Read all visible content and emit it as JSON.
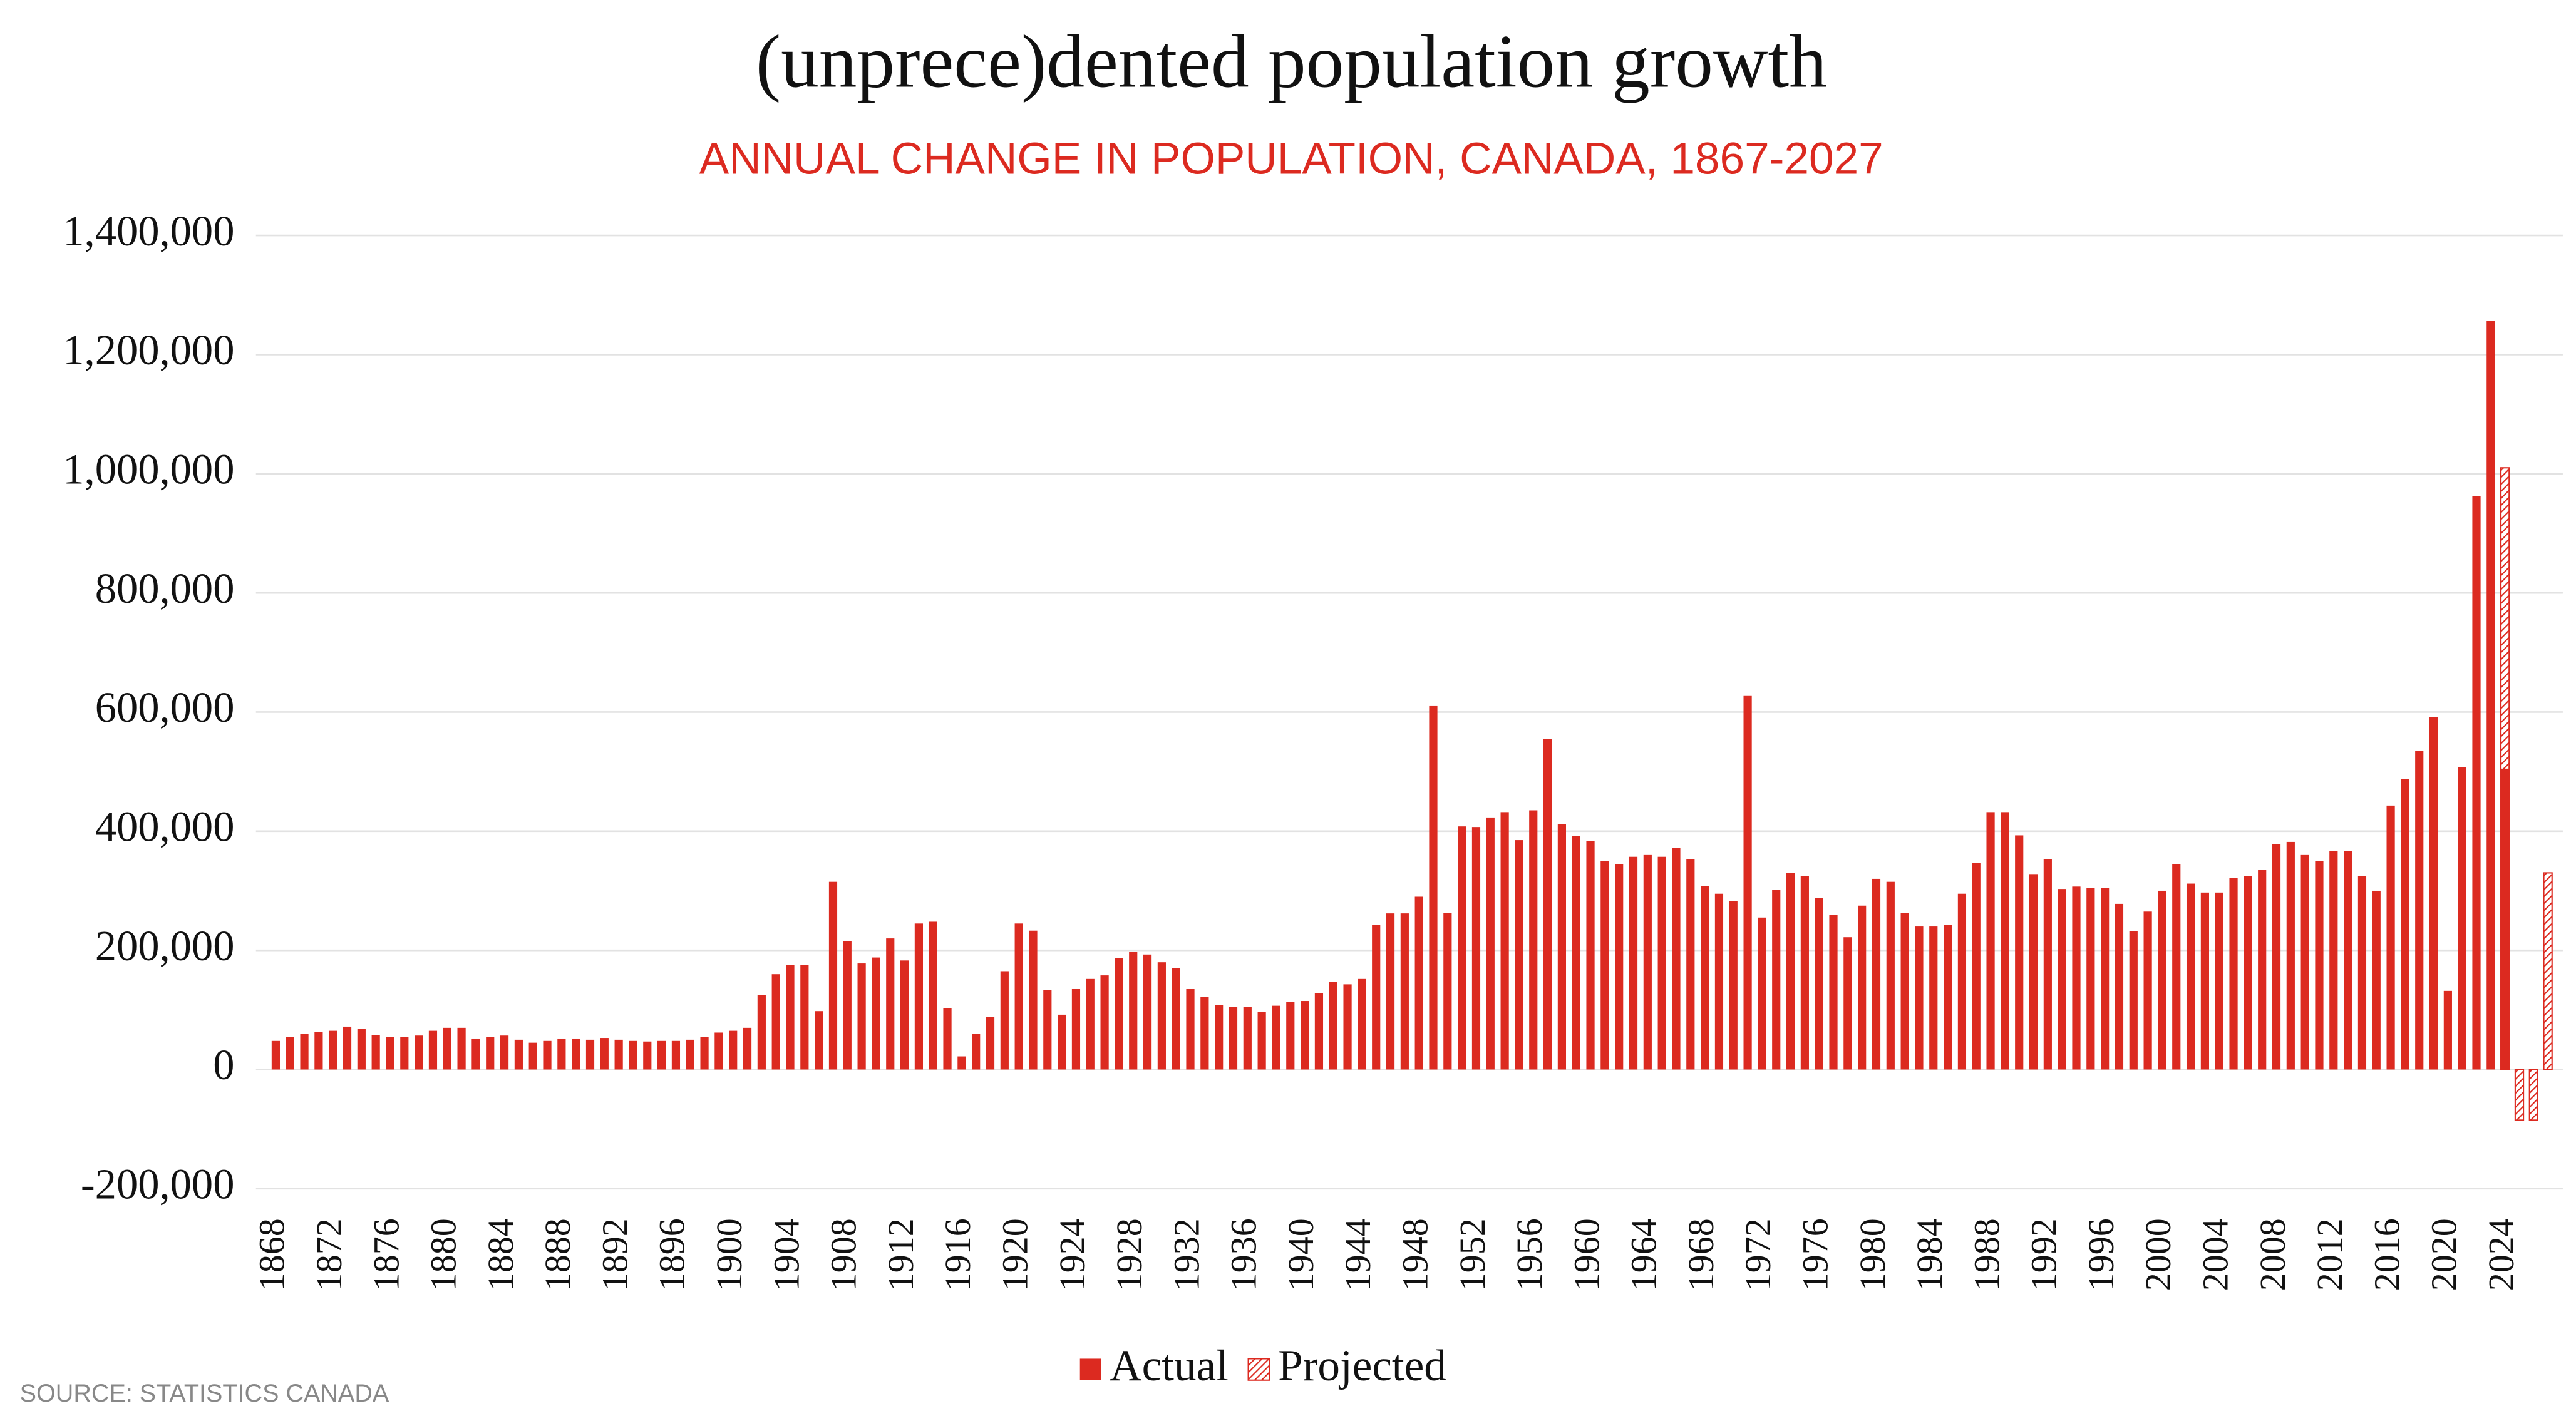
{
  "chart_data": {
    "type": "bar",
    "title": "(unprece)dented population growth",
    "subtitle": "ANNUAL CHANGE IN POPULATION, CANADA, 1867-2027",
    "source": "SOURCE: STATISTICS CANADA",
    "categories": [
      "1868",
      null,
      null,
      null,
      "1872",
      null,
      null,
      null,
      "1876",
      null,
      null,
      null,
      "1880",
      null,
      null,
      null,
      "1884",
      null,
      null,
      null,
      "1888",
      null,
      null,
      null,
      "1892",
      null,
      null,
      null,
      "1896",
      null,
      null,
      null,
      "1900",
      null,
      null,
      null,
      "1904",
      null,
      null,
      null,
      "1908",
      null,
      null,
      null,
      "1912",
      null,
      null,
      null,
      "1916",
      null,
      null,
      null,
      "1920",
      null,
      null,
      null,
      "1924",
      null,
      null,
      null,
      "1928",
      null,
      null,
      null,
      "1932",
      null,
      null,
      null,
      "1936",
      null,
      null,
      null,
      "1940",
      null,
      null,
      null,
      "1944",
      null,
      null,
      null,
      "1948",
      null,
      null,
      null,
      "1952",
      null,
      null,
      null,
      "1956",
      null,
      null,
      null,
      "1960",
      null,
      null,
      null,
      "1964",
      null,
      null,
      null,
      "1968",
      null,
      null,
      null,
      "1972",
      null,
      null,
      null,
      "1976",
      null,
      null,
      null,
      "1980",
      null,
      null,
      null,
      "1984",
      null,
      null,
      null,
      "1988",
      null,
      null,
      null,
      "1992",
      null,
      null,
      null,
      "1996",
      null,
      null,
      null,
      "2000",
      null,
      null,
      null,
      "2004",
      null,
      null,
      null,
      "2008",
      null,
      null,
      null,
      "2012",
      null,
      null,
      null,
      "2016",
      null,
      null,
      null,
      "2020",
      null,
      null,
      null,
      "2024",
      null,
      null,
      null
    ],
    "series": [
      {
        "name": "Actual",
        "color": "#dc2a20",
        "pattern": "solid",
        "values": [
          48000,
          55000,
          60000,
          63000,
          65000,
          72000,
          68000,
          58000,
          55000,
          55000,
          57000,
          65000,
          70000,
          70000,
          52000,
          55000,
          57000,
          50000,
          45000,
          48000,
          52000,
          52000,
          50000,
          53000,
          50000,
          48000,
          47000,
          48000,
          48000,
          50000,
          55000,
          62000,
          65000,
          70000,
          125000,
          160000,
          175000,
          175000,
          98000,
          315000,
          215000,
          178000,
          188000,
          220000,
          183000,
          245000,
          248000,
          103000,
          22000,
          60000,
          88000,
          165000,
          245000,
          233000,
          133000,
          92000,
          135000,
          152000,
          158000,
          187000,
          198000,
          193000,
          180000,
          170000,
          135000,
          122000,
          108000,
          105000,
          105000,
          97000,
          107000,
          113000,
          115000,
          128000,
          147000,
          143000,
          152000,
          243000,
          262000,
          262000,
          290000,
          610000,
          263000,
          408000,
          407000,
          423000,
          432000,
          385000,
          435000,
          555000,
          412000,
          392000,
          383000,
          350000,
          345000,
          357000,
          360000,
          357000,
          372000,
          353000,
          308000,
          295000,
          283000,
          627000,
          255000,
          302000,
          330000,
          325000,
          288000,
          260000,
          222000,
          275000,
          320000,
          315000,
          263000,
          240000,
          240000,
          243000,
          295000,
          347000,
          432000,
          432000,
          393000,
          328000,
          353000,
          303000,
          307000,
          305000,
          305000,
          278000,
          232000,
          265000,
          300000,
          345000,
          312000,
          297000,
          297000,
          322000,
          325000,
          335000,
          378000,
          382000,
          360000,
          350000,
          367000,
          367000,
          325000,
          300000,
          443000,
          488000,
          535000,
          592000,
          132000,
          508000,
          962000,
          1257000,
          505000,
          null,
          null,
          null
        ]
      },
      {
        "name": "Projected",
        "color": "#dc2a20",
        "pattern": "hatch",
        "values": [
          null,
          null,
          null,
          null,
          null,
          null,
          null,
          null,
          null,
          null,
          null,
          null,
          null,
          null,
          null,
          null,
          null,
          null,
          null,
          null,
          null,
          null,
          null,
          null,
          null,
          null,
          null,
          null,
          null,
          null,
          null,
          null,
          null,
          null,
          null,
          null,
          null,
          null,
          null,
          null,
          null,
          null,
          null,
          null,
          null,
          null,
          null,
          null,
          null,
          null,
          null,
          null,
          null,
          null,
          null,
          null,
          null,
          null,
          null,
          null,
          null,
          null,
          null,
          null,
          null,
          null,
          null,
          null,
          null,
          null,
          null,
          null,
          null,
          null,
          null,
          null,
          null,
          null,
          null,
          null,
          null,
          null,
          null,
          null,
          null,
          null,
          null,
          null,
          null,
          null,
          null,
          null,
          null,
          null,
          null,
          null,
          null,
          null,
          null,
          null,
          null,
          null,
          null,
          null,
          null,
          null,
          null,
          null,
          null,
          null,
          null,
          null,
          null,
          null,
          null,
          null,
          null,
          null,
          null,
          null,
          null,
          null,
          null,
          null,
          null,
          null,
          null,
          null,
          null,
          null,
          null,
          null,
          null,
          null,
          null,
          null,
          null,
          null,
          null,
          null,
          null,
          null,
          null,
          null,
          null,
          null,
          null,
          null,
          null,
          null,
          null,
          null,
          null,
          null,
          null,
          null,
          1010000,
          -85000,
          -85000,
          330000
        ]
      }
    ],
    "ylim": [
      -200000,
      1400000
    ],
    "yticks": [
      {
        "value": -200000,
        "label": "-200,000"
      },
      0,
      {
        "value": 200000,
        "label": "200,000"
      },
      {
        "value": 400000,
        "label": "400,000"
      },
      {
        "value": 600000,
        "label": "600,000"
      },
      {
        "value": 800000,
        "label": "800,000"
      },
      {
        "value": 1000000,
        "label": "1,000,000"
      },
      {
        "value": 1200000,
        "label": "1,200,000"
      },
      {
        "value": 1400000,
        "label": "1,400,000"
      }
    ],
    "grid": true,
    "legend": "bottom"
  }
}
